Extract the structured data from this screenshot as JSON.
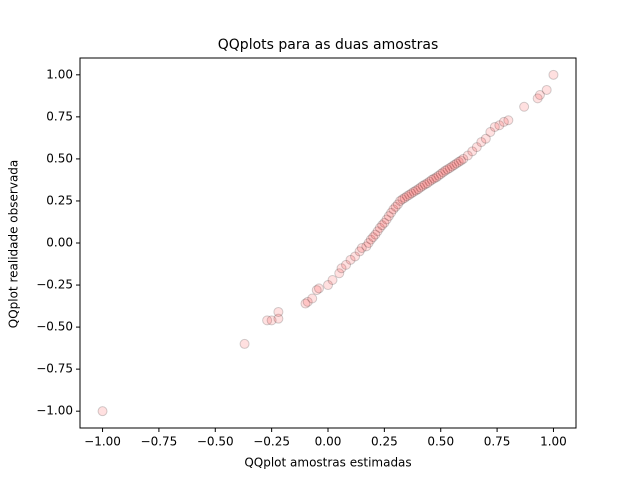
{
  "chart_data": {
    "type": "scatter",
    "title": "QQplots para as duas amostras",
    "x_label": "QQplot amostras estimadas",
    "y_label": "QQplot realidade observada",
    "color": "#ff0000",
    "edge_color": "#000000",
    "alpha": 0.12,
    "x": [
      -1.0,
      -0.37,
      -0.27,
      -0.25,
      -0.22,
      -0.22,
      -0.1,
      -0.09,
      -0.07,
      -0.05,
      -0.04,
      0.0,
      0.02,
      0.05,
      0.06,
      0.08,
      0.1,
      0.12,
      0.14,
      0.15,
      0.17,
      0.18,
      0.19,
      0.2,
      0.21,
      0.22,
      0.23,
      0.24,
      0.25,
      0.26,
      0.27,
      0.28,
      0.29,
      0.3,
      0.31,
      0.32,
      0.33,
      0.34,
      0.35,
      0.36,
      0.37,
      0.38,
      0.39,
      0.4,
      0.41,
      0.42,
      0.43,
      0.44,
      0.45,
      0.46,
      0.47,
      0.48,
      0.49,
      0.5,
      0.51,
      0.52,
      0.53,
      0.54,
      0.55,
      0.56,
      0.57,
      0.58,
      0.59,
      0.6,
      0.62,
      0.64,
      0.66,
      0.68,
      0.7,
      0.72,
      0.74,
      0.76,
      0.78,
      0.8,
      0.87,
      0.93,
      0.94,
      0.97,
      1.0
    ],
    "values": [
      -1.0,
      -0.6,
      -0.46,
      -0.46,
      -0.45,
      -0.41,
      -0.36,
      -0.35,
      -0.33,
      -0.28,
      -0.27,
      -0.25,
      -0.22,
      -0.18,
      -0.15,
      -0.13,
      -0.1,
      -0.08,
      -0.05,
      -0.03,
      -0.02,
      0.0,
      0.02,
      0.035,
      0.05,
      0.07,
      0.09,
      0.106,
      0.12,
      0.14,
      0.16,
      0.18,
      0.2,
      0.215,
      0.23,
      0.25,
      0.26,
      0.268,
      0.278,
      0.286,
      0.295,
      0.304,
      0.312,
      0.32,
      0.33,
      0.34,
      0.348,
      0.355,
      0.365,
      0.375,
      0.383,
      0.39,
      0.4,
      0.41,
      0.42,
      0.43,
      0.438,
      0.446,
      0.455,
      0.464,
      0.473,
      0.482,
      0.49,
      0.5,
      0.52,
      0.545,
      0.57,
      0.6,
      0.62,
      0.66,
      0.69,
      0.7,
      0.72,
      0.73,
      0.81,
      0.86,
      0.88,
      0.91,
      1.0
    ],
    "xlim": [
      -1.1,
      1.1
    ],
    "ylim": [
      -1.1,
      1.1
    ],
    "xticks": [
      {
        "value": -1,
        "label": "−1.00"
      },
      {
        "value": -0.75,
        "label": "−0.75"
      },
      {
        "value": -0.5,
        "label": "−0.50"
      },
      {
        "value": -0.25,
        "label": "−0.25"
      },
      {
        "value": 0,
        "label": "0.00"
      },
      {
        "value": 0.25,
        "label": "0.25"
      },
      {
        "value": 0.5,
        "label": "0.50"
      },
      {
        "value": 0.75,
        "label": "0.75"
      },
      {
        "value": 1,
        "label": "1.00"
      }
    ],
    "yticks": [
      {
        "value": -1,
        "label": "−1.00"
      },
      {
        "value": -0.75,
        "label": "−0.75"
      },
      {
        "value": -0.5,
        "label": "−0.50"
      },
      {
        "value": -0.25,
        "label": "−0.25"
      },
      {
        "value": 0,
        "label": "0.00"
      },
      {
        "value": 0.25,
        "label": "0.25"
      },
      {
        "value": 0.5,
        "label": "0.50"
      },
      {
        "value": 0.75,
        "label": "0.75"
      },
      {
        "value": 1,
        "label": "1.00"
      }
    ]
  }
}
